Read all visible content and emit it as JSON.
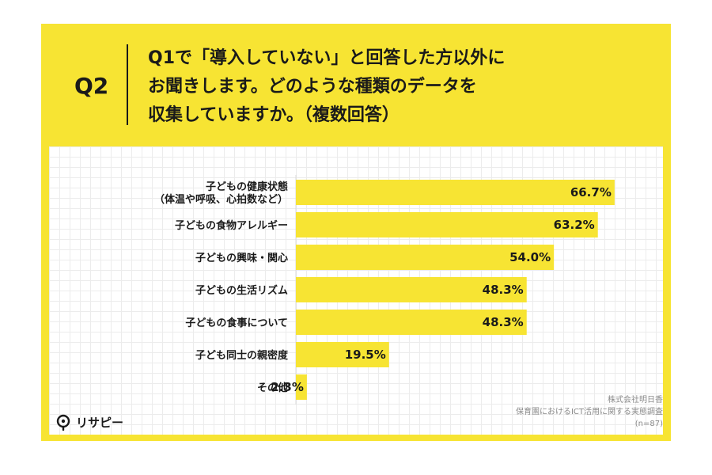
{
  "header": {
    "q_number": "Q2",
    "question_lines": [
      "Q1で「導入していない」と回答した方以外に",
      "お聞きします。どのような種類のデータを",
      "収集していますか。（複数回答）"
    ]
  },
  "chart_data": {
    "type": "bar",
    "orientation": "horizontal",
    "categories": [
      [
        "子どもの健康状態",
        "（体温や呼吸、心拍数など）"
      ],
      [
        "子どもの食物アレルギー"
      ],
      [
        "子どもの興味・関心"
      ],
      [
        "子どもの生活リズム"
      ],
      [
        "子どもの食事について"
      ],
      [
        "子ども同士の親密度"
      ],
      [
        "その他"
      ]
    ],
    "values": [
      66.7,
      63.2,
      54.0,
      48.3,
      48.3,
      19.5,
      2.3
    ],
    "value_labels": [
      "66.7%",
      "63.2%",
      "54.0%",
      "48.3%",
      "48.3%",
      "19.5%",
      "2.3%"
    ],
    "unit": "%",
    "xlim": [
      0,
      100
    ],
    "bar_color": "#f7e433",
    "grid": true
  },
  "logo": {
    "text": "リサピー"
  },
  "source": {
    "lines": [
      "株式会社明日香",
      "保育園におけるICT活用に関する実態調査",
      "(n=87)"
    ]
  },
  "colors": {
    "background_frame": "#f7e433",
    "text": "#1a1a1a",
    "source_text": "#8a8a8a"
  }
}
